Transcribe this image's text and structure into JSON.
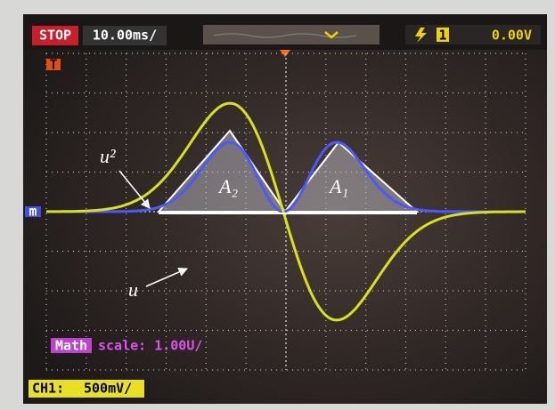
{
  "status_bar": {
    "run_state": "STOP",
    "timebase": "10.00ms/",
    "trigger_channel": "1",
    "trigger_level": "0.00V"
  },
  "markers": {
    "trigger": "T",
    "math": "m"
  },
  "math_info": {
    "label": "Math",
    "scale": "scale: 1.00U/"
  },
  "channel_info": {
    "label": "CH1:",
    "scale": "500mV/"
  },
  "annotations": {
    "u_squared": "u²",
    "u": "u",
    "area_2": "A₂",
    "area_1": "A₁"
  }
}
